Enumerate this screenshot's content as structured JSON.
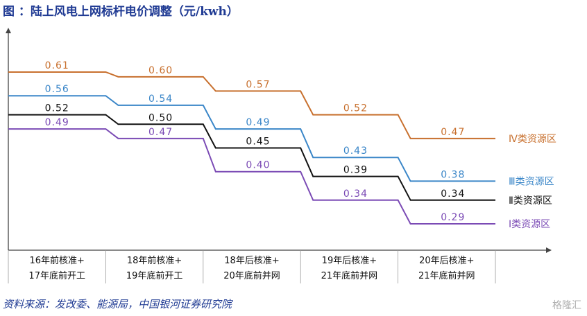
{
  "title": "图 ：陆上风电上网标杆电价调整（元/kwh）",
  "source": "资料来源：发改委、能源局，中国银河证券研究院",
  "watermark": "格隆汇",
  "chart_data": {
    "type": "line",
    "style": "step",
    "categories": [
      [
        "16年前核准+",
        "17年底前开工"
      ],
      [
        "18年前核准+",
        "19年底前开工"
      ],
      [
        "18年后核准+",
        "20年底前并网"
      ],
      [
        "19年后核准+",
        "21年底前并网"
      ],
      [
        "20年后核准+",
        "21年底前并网"
      ]
    ],
    "series": [
      {
        "name": "Ⅳ类资源区",
        "color": "#c8702e",
        "values": [
          0.61,
          0.6,
          0.57,
          0.52,
          0.47
        ]
      },
      {
        "name": "Ⅲ类资源区",
        "color": "#3a86c8",
        "values": [
          0.56,
          0.54,
          0.49,
          0.43,
          0.38
        ]
      },
      {
        "name": "Ⅱ类资源区",
        "color": "#111111",
        "values": [
          0.52,
          0.5,
          0.45,
          0.39,
          0.34
        ]
      },
      {
        "name": "Ⅰ类资源区",
        "color": "#7b4bb5",
        "values": [
          0.49,
          0.47,
          0.4,
          0.34,
          0.29
        ]
      }
    ],
    "ylim": [
      0,
      0.72
    ],
    "grid": false,
    "legend": "right"
  }
}
